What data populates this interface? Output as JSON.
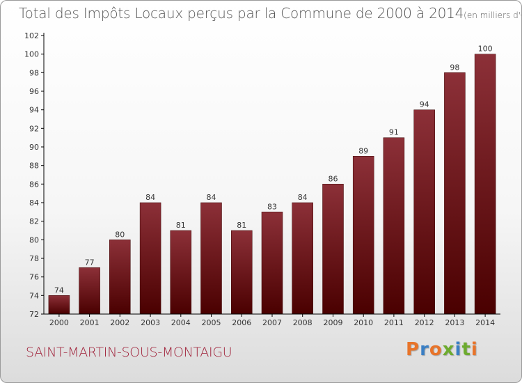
{
  "header": {
    "title": "Total des Impôts Locaux perçus par la Commune de 2000 à 2014",
    "unit": "(en milliers d'€)"
  },
  "footer": {
    "commune": "SAINT-MARTIN-SOUS-MONTAIGU",
    "logo_text": "Proxiti",
    "logo_colors": [
      "#e8742a",
      "#3a7fc4",
      "#e8742a",
      "#6dab2e",
      "#3a7fc4",
      "#6dab2e",
      "#e8742a"
    ]
  },
  "colors": {
    "bar_top": "#8c3038",
    "bar_bottom": "#4a0000",
    "commune_text": "#a0223a",
    "axis": "#000000"
  },
  "chart_data": {
    "type": "bar",
    "title": "Total des Impôts Locaux perçus par la Commune de 2000 à 2014",
    "xlabel": "",
    "ylabel": "(en milliers d'€)",
    "categories": [
      "2000",
      "2001",
      "2002",
      "2003",
      "2004",
      "2005",
      "2006",
      "2007",
      "2008",
      "2009",
      "2010",
      "2011",
      "2012",
      "2013",
      "2014"
    ],
    "values": [
      74,
      77,
      80,
      84,
      81,
      84,
      81,
      83,
      84,
      86,
      89,
      91,
      94,
      98,
      100
    ],
    "ylim": [
      72,
      102
    ],
    "yticks": [
      72,
      74,
      76,
      78,
      80,
      82,
      84,
      86,
      88,
      90,
      92,
      94,
      96,
      98,
      100,
      102
    ],
    "grid": false,
    "data_labels": true
  }
}
